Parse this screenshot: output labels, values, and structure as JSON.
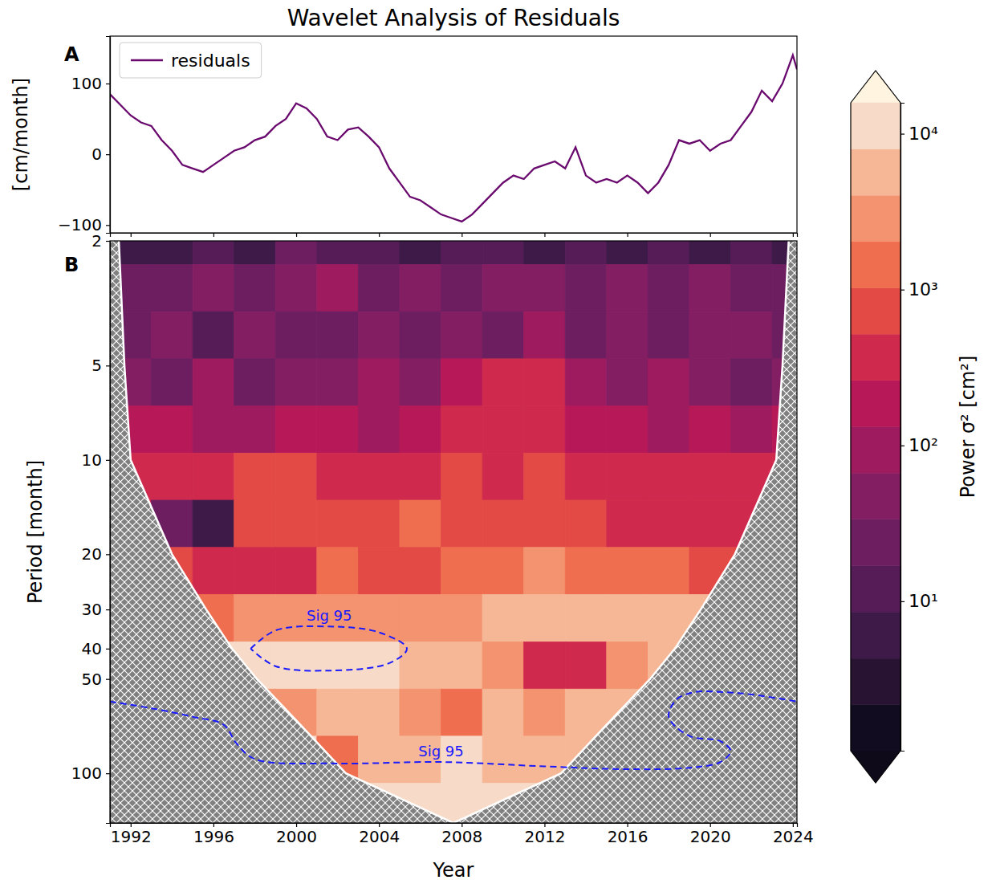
{
  "chart_data": [
    {
      "type": "line",
      "title": "Wavelet Analysis of Residuals",
      "panel_label": "A",
      "y_label": "[cm/month]",
      "x": [
        1991,
        1991.5,
        1992,
        1992.5,
        1993,
        1993.5,
        1994,
        1994.5,
        1995,
        1995.5,
        1996,
        1996.5,
        1997,
        1997.5,
        1998,
        1998.5,
        1999,
        1999.5,
        2000,
        2000.5,
        2001,
        2001.5,
        2002,
        2002.5,
        2003,
        2003.5,
        2004,
        2004.5,
        2005,
        2005.5,
        2006,
        2006.5,
        2007,
        2007.5,
        2008,
        2008.5,
        2009,
        2009.5,
        2010,
        2010.5,
        2011,
        2011.5,
        2012,
        2012.5,
        2013,
        2013.5,
        2014,
        2014.5,
        2015,
        2015.5,
        2016,
        2016.5,
        2017,
        2017.5,
        2018,
        2018.5,
        2019,
        2019.5,
        2020,
        2020.5,
        2021,
        2021.5,
        2022,
        2022.5,
        2023,
        2023.5,
        2024,
        2024.2
      ],
      "series": [
        {
          "name": "residuals",
          "color": "#6a0a6e",
          "values": [
            85,
            70,
            55,
            45,
            40,
            20,
            5,
            -15,
            -20,
            -25,
            -15,
            -5,
            5,
            10,
            20,
            25,
            40,
            50,
            72,
            65,
            50,
            25,
            20,
            35,
            38,
            25,
            10,
            -20,
            -40,
            -60,
            -65,
            -75,
            -85,
            -90,
            -95,
            -85,
            -70,
            -55,
            -40,
            -30,
            -35,
            -20,
            -15,
            -10,
            -20,
            10,
            -30,
            -40,
            -35,
            -40,
            -30,
            -40,
            -55,
            -40,
            -15,
            20,
            15,
            20,
            5,
            15,
            20,
            40,
            60,
            90,
            75,
            100,
            140,
            120
          ]
        }
      ],
      "xlim": [
        1991,
        2024.2
      ],
      "ylim": [
        -111,
        167
      ],
      "xticks": [
        1992,
        1996,
        2000,
        2004,
        2008,
        2012,
        2016,
        2020,
        2024
      ],
      "yticks": [
        {
          "value": -100,
          "label": "−100"
        },
        0,
        100
      ],
      "legend": "upper left",
      "tick_labels": "y"
    },
    {
      "type": "heatmap",
      "panel_label": "B",
      "x_label": "Year",
      "y_label": "Period [month]",
      "log": "y",
      "x": [
        1992,
        1994,
        1996,
        1998,
        2000,
        2002,
        2004,
        2006,
        2008,
        2010,
        2012,
        2014,
        2016,
        2018,
        2020,
        2022,
        2024
      ],
      "y": [
        2,
        2.83,
        4,
        5.66,
        8,
        11.3,
        16,
        22.6,
        32,
        45.3,
        64,
        90.5,
        128
      ],
      "cells": [
        [
          8,
          5,
          12,
          6,
          20,
          10,
          15,
          7,
          12,
          9,
          6,
          14,
          8,
          11,
          5,
          9,
          7
        ],
        [
          30,
          20,
          60,
          25,
          40,
          80,
          30,
          50,
          20,
          60,
          35,
          25,
          50,
          30,
          40,
          25,
          30
        ],
        [
          25,
          40,
          15,
          50,
          30,
          20,
          60,
          25,
          40,
          30,
          70,
          20,
          45,
          25,
          35,
          50,
          20
        ],
        [
          60,
          30,
          80,
          20,
          50,
          40,
          120,
          60,
          150,
          300,
          500,
          80,
          40,
          100,
          60,
          30,
          50
        ],
        [
          150,
          200,
          80,
          120,
          250,
          150,
          100,
          250,
          300,
          350,
          400,
          200,
          150,
          120,
          200,
          100,
          150
        ],
        [
          400,
          300,
          500,
          900,
          700,
          400,
          300,
          500,
          600,
          400,
          800,
          500,
          300,
          400,
          350,
          300,
          400
        ],
        [
          300,
          20,
          5,
          600,
          800,
          700,
          900,
          1500,
          900,
          600,
          1000,
          700,
          400,
          500,
          300,
          400,
          400
        ],
        [
          600,
          800,
          500,
          300,
          400,
          1200,
          1000,
          800,
          1500,
          2000,
          2500,
          2000,
          1500,
          1800,
          1000,
          800,
          900
        ],
        [
          3000,
          2500,
          2000,
          3500,
          3000,
          4000,
          3000,
          4000,
          4000,
          5000,
          5000,
          6000,
          5000,
          6000,
          6500,
          5000,
          4500
        ],
        [
          6000,
          7000,
          8000,
          12000,
          12500,
          12000,
          9000,
          7000,
          5000,
          4000,
          500,
          300,
          4000,
          6000,
          5000,
          4000,
          3500
        ],
        [
          4000,
          4500,
          4000,
          3000,
          4000,
          5000,
          6000,
          4000,
          1500,
          5000,
          4000,
          5000,
          6000,
          9000,
          10000,
          8000,
          7000
        ],
        [
          5000,
          5000,
          5000,
          6000,
          8000,
          2000,
          6000,
          7000,
          8000,
          7000,
          7000,
          7000,
          7000,
          7000,
          7000,
          7000,
          7000
        ],
        [
          16000,
          16000,
          16000,
          16000,
          16000,
          16000,
          16000,
          16000,
          16000,
          16000,
          16000,
          16000,
          16000,
          16000,
          16000,
          16000,
          16000
        ]
      ],
      "xlim": [
        1991,
        2024.2
      ],
      "ylim": [
        2,
        144
      ],
      "xticks": [
        1992,
        1996,
        2000,
        2004,
        2008,
        2012,
        2016,
        2020,
        2024
      ],
      "yticks": [
        2,
        5,
        10,
        20,
        30,
        40,
        50,
        100
      ],
      "colorbar": {
        "label": "Power σ² [cm²]",
        "range": [
          1.1,
          15800
        ],
        "levels": [
          1.1,
          2.18,
          4.3,
          8.55,
          16.9,
          33.6,
          66.5,
          132,
          261,
          518,
          1026,
          2032,
          4027,
          7980,
          15800
        ],
        "ticks": [
          {
            "value": 10,
            "label": "10¹"
          },
          {
            "value": 100,
            "label": "10²"
          },
          {
            "value": 1000,
            "label": "10³"
          },
          {
            "value": 10000,
            "label": "10⁴"
          }
        ],
        "colors": [
          "#120c20",
          "#281432",
          "#3e1a48",
          "#551c58",
          "#6c1e61",
          "#841e62",
          "#9d1b5e",
          "#b61858",
          "#cf2a4d",
          "#e34a46",
          "#ef6e4f",
          "#f4936f",
          "#f6b796",
          "#f7dbc8"
        ]
      },
      "coi": {
        "x": [
          1991.43,
          1991.7,
          1992.0,
          1994.0,
          1995.65,
          1996.9,
          1998.1,
          2000.2,
          2002.4,
          2007.6,
          2012.8,
          2015.0,
          2017.1,
          2018.3,
          2019.55,
          2021.2,
          2023.2,
          2023.5,
          2023.8
        ],
        "values": [
          2,
          5,
          10,
          20,
          30,
          40,
          50,
          70,
          100,
          144,
          100,
          70,
          50,
          40,
          30,
          20,
          10,
          5,
          2
        ]
      },
      "significance": [
        {
          "label": "Sig 95",
          "x": [
            1997.8,
            1999,
            2001.6,
            2004,
            2005.35,
            2004.5,
            2001.6,
            1999,
            1997.8
          ],
          "values": [
            40,
            35,
            34,
            35.5,
            40,
            44.5,
            47,
            45.5,
            40
          ]
        },
        {
          "label": "Sig 95",
          "x": [
            1991,
            1993,
            1995,
            1996.5,
            1997.1,
            1998,
            2002,
            2007,
            2012,
            2016,
            2019,
            2020.5,
            2021,
            2020.5,
            2019,
            2018,
            2018.4,
            2019.3,
            2020.5,
            2022,
            2024.2
          ],
          "values": [
            59,
            62,
            66,
            70,
            80,
            90,
            93,
            92,
            95,
            97,
            96,
            92,
            85,
            79,
            76,
            66,
            58,
            55,
            55,
            56,
            59
          ]
        }
      ]
    }
  ]
}
